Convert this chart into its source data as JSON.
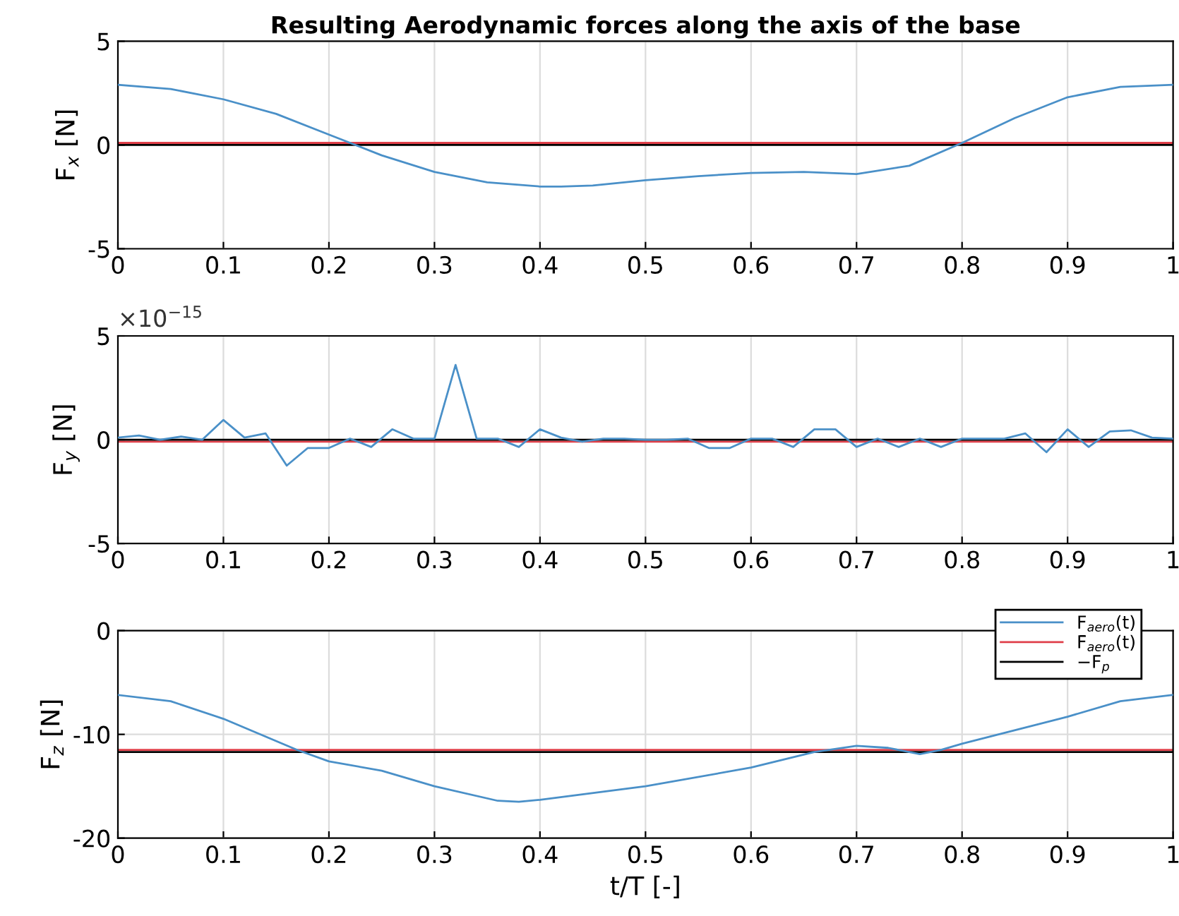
{
  "chart_data": [
    {
      "type": "line",
      "title": "Resulting Aerodynamic forces along the axis of the base",
      "ylabel": "F$_{x}$ [N]",
      "xlim": [
        0,
        1
      ],
      "xticks": [
        0,
        0.1,
        0.2,
        0.3,
        0.4,
        0.5,
        0.6,
        0.7,
        0.8,
        0.9,
        1
      ],
      "ylim": [
        -5,
        5
      ],
      "yticks": [
        -5,
        0,
        5
      ],
      "grid": true,
      "legend": false,
      "series": [
        {
          "color": "#4a90c8",
          "x": [
            0,
            0.05,
            0.1,
            0.15,
            0.2,
            0.25,
            0.3,
            0.35,
            0.4,
            0.42,
            0.45,
            0.5,
            0.55,
            0.6,
            0.65,
            0.7,
            0.75,
            0.8,
            0.85,
            0.9,
            0.95,
            1
          ],
          "values": [
            2.9,
            2.7,
            2.2,
            1.5,
            0.5,
            -0.5,
            -1.3,
            -1.8,
            -2.0,
            -2.0,
            -1.95,
            -1.7,
            -1.5,
            -1.35,
            -1.3,
            -1.4,
            -1.0,
            0.1,
            1.3,
            2.3,
            2.8,
            2.9
          ]
        },
        {
          "color": "#e0404a",
          "x": [
            0,
            1
          ],
          "values": [
            0.1,
            0.1
          ]
        },
        {
          "color": "#000000",
          "x": [
            0,
            1
          ],
          "values": [
            0,
            0
          ]
        }
      ]
    },
    {
      "type": "line",
      "ylabel": "F$_{y}$ [N]",
      "annotations": [
        "×10$^{−15}$"
      ],
      "xlim": [
        0,
        1
      ],
      "xticks": [
        0,
        0.1,
        0.2,
        0.3,
        0.4,
        0.5,
        0.6,
        0.7,
        0.8,
        0.9,
        1
      ],
      "ylim": [
        -5,
        5
      ],
      "yticks": [
        -5,
        0,
        5
      ],
      "grid": true,
      "legend": false,
      "series": [
        {
          "color": "#4a90c8",
          "x": [
            0,
            0.02,
            0.04,
            0.06,
            0.08,
            0.1,
            0.12,
            0.14,
            0.16,
            0.18,
            0.2,
            0.22,
            0.24,
            0.26,
            0.28,
            0.3,
            0.32,
            0.34,
            0.36,
            0.38,
            0.4,
            0.42,
            0.44,
            0.46,
            0.48,
            0.5,
            0.52,
            0.54,
            0.56,
            0.58,
            0.6,
            0.62,
            0.64,
            0.66,
            0.68,
            0.7,
            0.72,
            0.74,
            0.76,
            0.78,
            0.8,
            0.82,
            0.84,
            0.86,
            0.88,
            0.9,
            0.92,
            0.94,
            0.96,
            0.98,
            1
          ],
          "values": [
            0.1,
            0.2,
            0,
            0.15,
            0,
            0.95,
            0.1,
            0.3,
            -1.25,
            -0.4,
            -0.4,
            0.05,
            -0.35,
            0.5,
            0.05,
            0.05,
            3.6,
            0.05,
            0.05,
            -0.35,
            0.5,
            0.1,
            -0.1,
            0.05,
            0.05,
            0,
            0,
            0.05,
            -0.4,
            -0.4,
            0.05,
            0.05,
            -0.35,
            0.5,
            0.5,
            -0.35,
            0.05,
            -0.35,
            0.05,
            -0.35,
            0.05,
            0.05,
            0.05,
            0.3,
            -0.6,
            0.5,
            -0.35,
            0.4,
            0.45,
            0.1,
            0.05
          ]
        },
        {
          "color": "#e0404a",
          "x": [
            0,
            1
          ],
          "values": [
            -0.1,
            -0.1
          ]
        },
        {
          "color": "#000000",
          "x": [
            0,
            1
          ],
          "values": [
            0,
            0
          ]
        }
      ]
    },
    {
      "type": "line",
      "ylabel": "F$_{z}$ [N]",
      "xlabel": "t/T [-]",
      "xlim": [
        0,
        1
      ],
      "xticks": [
        0,
        0.1,
        0.2,
        0.3,
        0.4,
        0.5,
        0.6,
        0.7,
        0.8,
        0.9,
        1
      ],
      "ylim": [
        -20,
        0
      ],
      "yticks": [
        -20,
        -10,
        0
      ],
      "grid": true,
      "legend": "top right",
      "series": [
        {
          "name": "F$_{aero}$(t)",
          "color": "#4a90c8",
          "x": [
            0,
            0.05,
            0.1,
            0.17,
            0.2,
            0.25,
            0.3,
            0.36,
            0.38,
            0.4,
            0.5,
            0.6,
            0.66,
            0.7,
            0.73,
            0.76,
            0.78,
            0.8,
            0.9,
            0.95,
            1
          ],
          "values": [
            -6.2,
            -6.8,
            -8.5,
            -11.5,
            -12.6,
            -13.5,
            -15.0,
            -16.4,
            -16.5,
            -16.3,
            -15.0,
            -13.2,
            -11.7,
            -11.1,
            -11.3,
            -11.9,
            -11.5,
            -10.9,
            -8.3,
            -6.8,
            -6.2
          ]
        },
        {
          "name": "F̄$_{aero}$(t)",
          "color": "#e0404a",
          "x": [
            0,
            1
          ],
          "values": [
            -11.5,
            -11.5
          ]
        },
        {
          "name": "−F$_{p}$",
          "color": "#000000",
          "x": [
            0,
            1
          ],
          "values": [
            -11.7,
            -11.7
          ]
        }
      ]
    }
  ]
}
